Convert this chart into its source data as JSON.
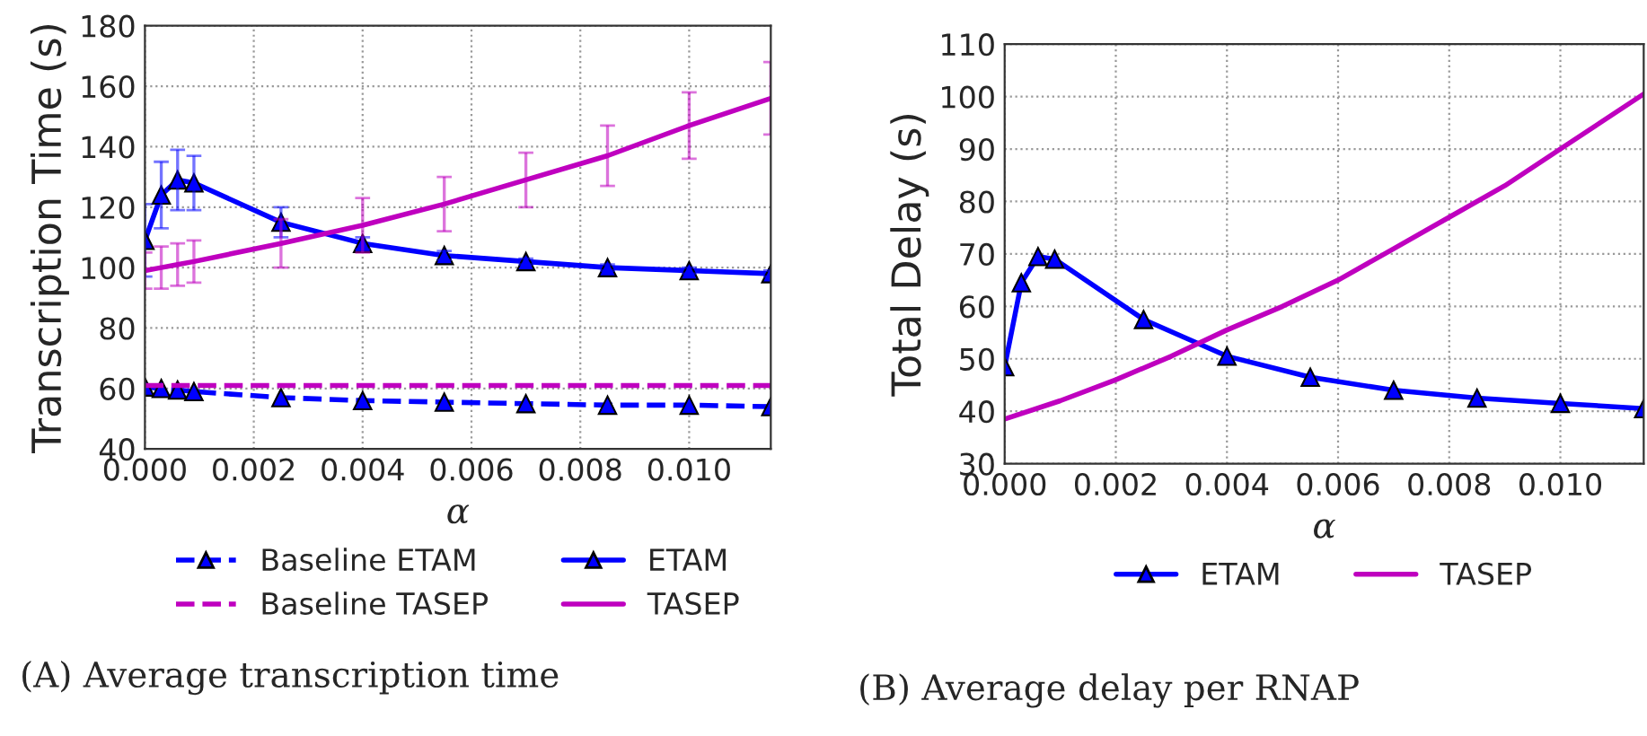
{
  "chart_data": [
    {
      "type": "line",
      "title": "(A) Average transcription time",
      "xlabel": "α",
      "ylabel": "Transcription Time (s)",
      "x": [
        0.0,
        0.0003,
        0.0006,
        0.0009,
        0.0025,
        0.004,
        0.0055,
        0.007,
        0.0085,
        0.01,
        0.0115
      ],
      "xlim": [
        0,
        0.0115
      ],
      "xticks": [
        {
          "value": 0,
          "label": "0.000"
        },
        {
          "value": 0.002,
          "label": "0.002"
        },
        {
          "value": 0.004,
          "label": "0.004"
        },
        {
          "value": 0.006,
          "label": "0.006"
        },
        {
          "value": 0.008,
          "label": "0.008"
        },
        {
          "value": 0.01,
          "label": "0.010"
        }
      ],
      "ylim": [
        40,
        180
      ],
      "yticks": [
        40,
        60,
        80,
        100,
        120,
        140,
        160,
        180
      ],
      "grid": true,
      "legend": "bottom",
      "series": [
        {
          "name": "Baseline ETAM",
          "color": "#0000ff",
          "marker": "triangle",
          "line_style": "dashed",
          "values": [
            60.5,
            60,
            59.5,
            59,
            57,
            56,
            55.5,
            55,
            54.5,
            54.5,
            54
          ]
        },
        {
          "name": "Baseline TASEP",
          "color": "#bf00bf",
          "marker": "none",
          "line_style": "dashed",
          "values": [
            61,
            61,
            61,
            61,
            61,
            61,
            61,
            61,
            61,
            61,
            61
          ]
        },
        {
          "name": "ETAM",
          "color": "#0000ff",
          "marker": "triangle",
          "line_style": "solid",
          "values": [
            109,
            124,
            129,
            128,
            115,
            108,
            104,
            102,
            100,
            99,
            98
          ],
          "errors": [
            12,
            11,
            10,
            9,
            5,
            2,
            1.5,
            1,
            1,
            1,
            1
          ]
        },
        {
          "name": "TASEP",
          "color": "#bf00bf",
          "marker": "none",
          "line_style": "solid",
          "values": [
            99,
            100,
            101,
            102,
            108,
            114,
            121,
            129,
            137,
            147,
            156
          ],
          "errors": [
            6,
            7,
            7,
            7,
            8,
            9,
            9,
            9,
            10,
            11,
            12
          ]
        }
      ]
    },
    {
      "type": "line",
      "title": "(B) Average delay per RNAP",
      "xlabel": "α",
      "ylabel": "Total Delay (s)",
      "xlim": [
        0,
        0.0115
      ],
      "xticks": [
        {
          "value": 0,
          "label": "0.000"
        },
        {
          "value": 0.002,
          "label": "0.002"
        },
        {
          "value": 0.004,
          "label": "0.004"
        },
        {
          "value": 0.006,
          "label": "0.006"
        },
        {
          "value": 0.008,
          "label": "0.008"
        },
        {
          "value": 0.01,
          "label": "0.010"
        }
      ],
      "ylim": [
        30,
        110
      ],
      "yticks": [
        30,
        40,
        50,
        60,
        70,
        80,
        90,
        100,
        110
      ],
      "grid": true,
      "legend": "bottom",
      "series": [
        {
          "name": "ETAM",
          "color": "#0000ff",
          "marker": "triangle",
          "line_style": "solid",
          "x": [
            0.0,
            0.0003,
            0.0006,
            0.0009,
            0.0025,
            0.004,
            0.0055,
            0.007,
            0.0085,
            0.01,
            0.0115
          ],
          "values": [
            48.5,
            64.5,
            69.5,
            69,
            57.5,
            50.5,
            46.5,
            44,
            42.5,
            41.5,
            40.5
          ]
        },
        {
          "name": "TASEP",
          "color": "#bf00bf",
          "marker": "none",
          "line_style": "solid",
          "x": [
            0.0,
            0.001,
            0.002,
            0.003,
            0.004,
            0.005,
            0.006,
            0.007,
            0.008,
            0.009,
            0.01,
            0.0115
          ],
          "values": [
            38.5,
            42,
            46,
            50.5,
            55.5,
            60,
            65,
            71,
            77,
            83,
            90,
            100.5
          ]
        }
      ]
    }
  ]
}
